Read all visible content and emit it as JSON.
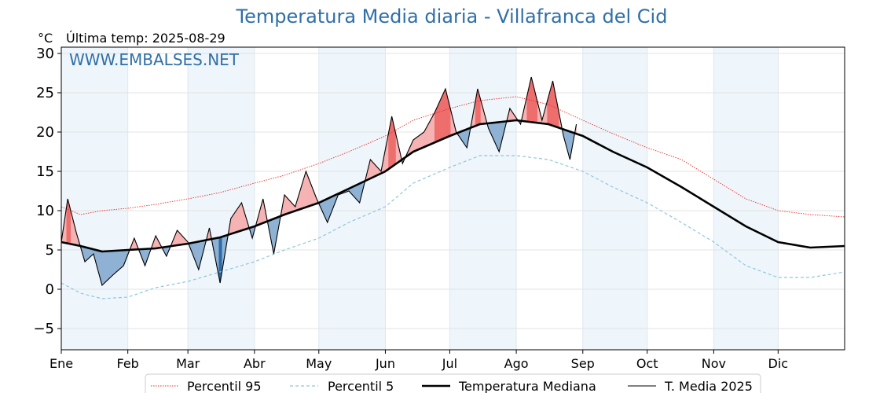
{
  "title": "Temperatura Media diaria - Villafranca del Cid",
  "unit_label": "°C",
  "last_temp_label": "Última temp: 2025-08-29",
  "watermark": "WWW.EMBALSES.NET",
  "colors": {
    "title": "#2f6fa7",
    "p95": "#e8302a",
    "p5": "#8fc7da",
    "median": "#000000",
    "media2025": "#000000",
    "above_light": "#f6b3b3",
    "above_dark": "#ee6e6e",
    "below_light": "#8fb2d4",
    "below_dark": "#2c6aa8",
    "shade": "#eef5fb"
  },
  "chart_data": {
    "type": "line",
    "title": "Temperatura Media diaria - Villafranca del Cid",
    "ylabel": "°C",
    "ylim": [
      -7.7,
      30.8
    ],
    "yticks": [
      -5,
      0,
      5,
      10,
      15,
      20,
      25,
      30
    ],
    "ytick_labels": [
      "−5",
      "0",
      "5",
      "10",
      "15",
      "20",
      "25",
      "30"
    ],
    "xlim_day": [
      1,
      366
    ],
    "months": [
      "Ene",
      "Feb",
      "Mar",
      "Abr",
      "May",
      "Jun",
      "Jul",
      "Ago",
      "Sep",
      "Oct",
      "Nov",
      "Dic"
    ],
    "month_start_day": [
      1,
      32,
      60,
      91,
      121,
      152,
      182,
      213,
      244,
      274,
      305,
      335
    ],
    "grid": true,
    "legend_position": "bottom-center",
    "series": [
      {
        "name": "Percentil 95",
        "style": "red dotted",
        "x": [
          1,
          10,
          20,
          32,
          45,
          60,
          75,
          91,
          105,
          121,
          135,
          152,
          165,
          182,
          196,
          213,
          228,
          244,
          258,
          274,
          290,
          305,
          320,
          335,
          350,
          366
        ],
        "y": [
          10.5,
          9.5,
          10.0,
          10.3,
          10.8,
          11.5,
          12.3,
          13.5,
          14.5,
          16.0,
          17.5,
          19.5,
          21.5,
          23.0,
          24.0,
          24.5,
          23.5,
          21.5,
          19.8,
          18.0,
          16.5,
          14.0,
          11.5,
          10.0,
          9.5,
          9.2
        ]
      },
      {
        "name": "Percentil 5",
        "style": "light blue dashed",
        "x": [
          1,
          10,
          20,
          32,
          45,
          60,
          75,
          91,
          105,
          121,
          135,
          152,
          165,
          182,
          196,
          213,
          228,
          244,
          258,
          274,
          290,
          305,
          320,
          335,
          350,
          366
        ],
        "y": [
          0.8,
          -0.5,
          -1.2,
          -1.0,
          0.2,
          1.0,
          2.2,
          3.5,
          5.0,
          6.5,
          8.5,
          10.5,
          13.5,
          15.5,
          17.0,
          17.0,
          16.5,
          15.0,
          13.0,
          11.0,
          8.5,
          6.0,
          3.0,
          1.5,
          1.5,
          2.2
        ]
      },
      {
        "name": "Temperatura Mediana",
        "style": "black thick",
        "x": [
          1,
          10,
          20,
          32,
          45,
          60,
          75,
          91,
          105,
          121,
          135,
          152,
          165,
          182,
          196,
          213,
          228,
          244,
          258,
          274,
          290,
          305,
          320,
          335,
          350,
          366
        ],
        "y": [
          6.0,
          5.5,
          4.8,
          5.0,
          5.2,
          5.8,
          6.6,
          8.0,
          9.5,
          11.0,
          12.8,
          15.0,
          17.5,
          19.5,
          21.0,
          21.5,
          21.0,
          19.5,
          17.5,
          15.5,
          13.0,
          10.5,
          8.0,
          6.0,
          5.3,
          5.5
        ]
      },
      {
        "name": "T. Media 2025",
        "style": "black thin",
        "x": [
          1,
          4,
          8,
          12,
          16,
          20,
          25,
          30,
          35,
          40,
          45,
          50,
          55,
          60,
          65,
          70,
          75,
          80,
          85,
          90,
          95,
          100,
          105,
          110,
          115,
          120,
          125,
          130,
          135,
          140,
          145,
          150,
          155,
          160,
          165,
          170,
          175,
          180,
          185,
          190,
          195,
          200,
          205,
          210,
          215,
          220,
          225,
          230,
          235,
          238,
          241
        ],
        "y": [
          6.0,
          11.5,
          7.2,
          3.5,
          4.5,
          0.5,
          1.8,
          3.0,
          6.5,
          3.0,
          6.8,
          4.2,
          7.5,
          6.0,
          2.5,
          7.8,
          0.8,
          9.0,
          11.0,
          6.5,
          11.5,
          4.5,
          12.0,
          10.5,
          15.0,
          11.5,
          8.5,
          12.0,
          12.5,
          11.0,
          16.5,
          15.0,
          22.0,
          16.0,
          19.0,
          20.0,
          22.5,
          25.5,
          20.0,
          18.0,
          25.5,
          20.5,
          17.5,
          23.0,
          21.0,
          27.0,
          21.5,
          26.5,
          19.5,
          16.5,
          21.0
        ]
      }
    ]
  }
}
